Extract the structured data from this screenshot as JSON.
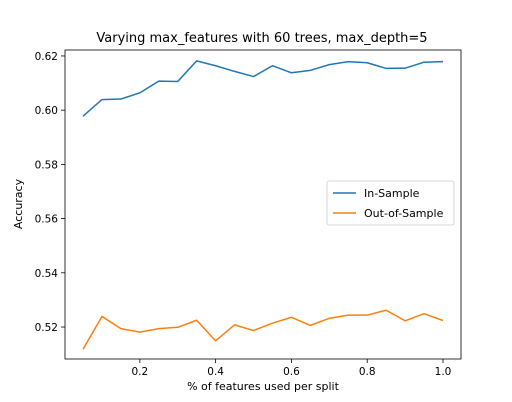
{
  "chart_data": {
    "type": "line",
    "title": "Varying max_features with 60 trees, max_depth=5",
    "xlabel": "% of features used per split",
    "ylabel": "Accuracy",
    "xlim": [
      0.0025,
      1.0475
    ],
    "ylim": [
      0.5082,
      0.6222
    ],
    "xticks": [
      0.2,
      0.4,
      0.6,
      0.8,
      1.0
    ],
    "xtick_labels": [
      "0.2",
      "0.4",
      "0.6",
      "0.8",
      "1.0"
    ],
    "yticks": [
      0.52,
      0.54,
      0.56,
      0.58,
      0.6,
      0.62
    ],
    "ytick_labels": [
      "0.52",
      "0.54",
      "0.56",
      "0.58",
      "0.60",
      "0.62"
    ],
    "grid": false,
    "legend_position": "center-right",
    "x": [
      0.05,
      0.1,
      0.15,
      0.2,
      0.25,
      0.3,
      0.35,
      0.4,
      0.45,
      0.5,
      0.55,
      0.6,
      0.65,
      0.7,
      0.75,
      0.8,
      0.85,
      0.9,
      0.95,
      1.0
    ],
    "series": [
      {
        "name": "In-Sample",
        "color": "#1f77b4",
        "values": [
          0.5978,
          0.6039,
          0.6041,
          0.6064,
          0.6107,
          0.6106,
          0.6182,
          0.6164,
          0.6143,
          0.6124,
          0.6164,
          0.6138,
          0.6147,
          0.6168,
          0.6179,
          0.6175,
          0.6154,
          0.6155,
          0.6177,
          0.6179
        ]
      },
      {
        "name": "Out-of-Sample",
        "color": "#ff7f0e",
        "values": [
          0.5118,
          0.5239,
          0.5194,
          0.5181,
          0.5194,
          0.5199,
          0.5225,
          0.5149,
          0.5208,
          0.5187,
          0.5214,
          0.5236,
          0.5206,
          0.5232,
          0.5244,
          0.5244,
          0.5262,
          0.5223,
          0.5249,
          0.5224
        ]
      }
    ]
  }
}
